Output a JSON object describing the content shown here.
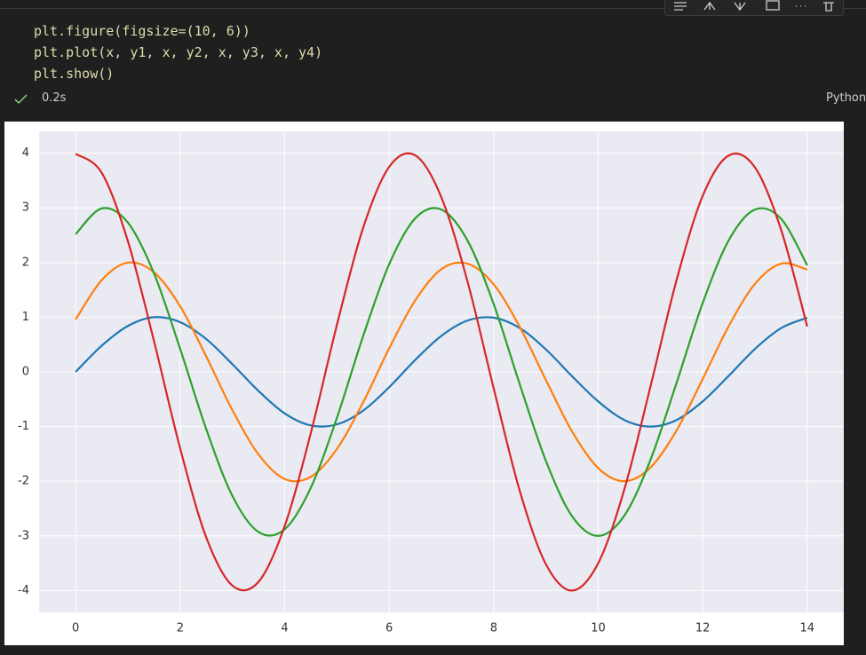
{
  "code": [
    "plt.figure(figsize=(10, 6))",
    "plt.plot(x, y1, x, y2, x, y3, x, y4)",
    "plt.show()"
  ],
  "status": {
    "time": "0.2s",
    "language": "Python"
  },
  "chart_data": {
    "type": "line",
    "x": [
      0,
      0.5,
      1,
      1.5,
      2,
      2.5,
      3,
      3.5,
      4,
      4.5,
      5,
      5.5,
      6,
      6.5,
      7,
      7.5,
      8,
      8.5,
      9,
      9.5,
      10,
      10.5,
      11,
      11.5,
      12,
      12.5,
      13,
      13.5,
      14
    ],
    "series": [
      {
        "color": "#1f77b4",
        "values": [
          0,
          0.48,
          0.84,
          1.0,
          0.91,
          0.6,
          0.14,
          -0.35,
          -0.76,
          -0.98,
          -0.96,
          -0.71,
          -0.28,
          0.22,
          0.66,
          0.94,
          0.99,
          0.8,
          0.41,
          -0.08,
          -0.54,
          -0.88,
          -1.0,
          -0.88,
          -0.54,
          -0.07,
          0.42,
          0.8,
          0.99
        ]
      },
      {
        "color": "#ff7f0e",
        "values": [
          0.96,
          1.68,
          2.0,
          1.82,
          1.2,
          0.28,
          -0.7,
          -1.51,
          -1.96,
          -1.92,
          -1.41,
          -0.56,
          0.43,
          1.31,
          1.88,
          1.98,
          1.6,
          0.82,
          -0.15,
          -1.09,
          -1.76,
          -2.0,
          -1.75,
          -1.07,
          -0.13,
          0.84,
          1.61,
          1.98,
          1.87
        ]
      },
      {
        "color": "#2ca02c",
        "values": [
          2.52,
          2.99,
          2.73,
          1.8,
          0.42,
          -1.05,
          -2.27,
          -2.93,
          -2.88,
          -2.12,
          -0.84,
          0.65,
          1.97,
          2.81,
          2.97,
          2.4,
          1.24,
          -0.23,
          -1.63,
          -2.64,
          -3.0,
          -2.63,
          -1.61,
          -0.2,
          1.26,
          2.41,
          2.97,
          2.8,
          1.95
        ]
      },
      {
        "color": "#d62728",
        "values": [
          3.99,
          3.64,
          2.39,
          0.56,
          -1.4,
          -3.03,
          -3.91,
          -3.84,
          -2.82,
          -1.12,
          0.86,
          2.63,
          3.75,
          3.96,
          3.19,
          1.65,
          -0.3,
          -2.18,
          -3.52,
          -4.0,
          -3.5,
          -2.15,
          -0.27,
          1.68,
          3.22,
          3.96,
          3.74,
          2.6,
          0.83
        ]
      }
    ],
    "xlim": [
      -0.7,
      14.7
    ],
    "ylim": [
      -4.4,
      4.4
    ],
    "xticks": [
      0,
      2,
      4,
      6,
      8,
      10,
      12,
      14
    ],
    "yticks": [
      -4,
      -3,
      -2,
      -1,
      0,
      1,
      2,
      3,
      4
    ],
    "grid": true
  }
}
